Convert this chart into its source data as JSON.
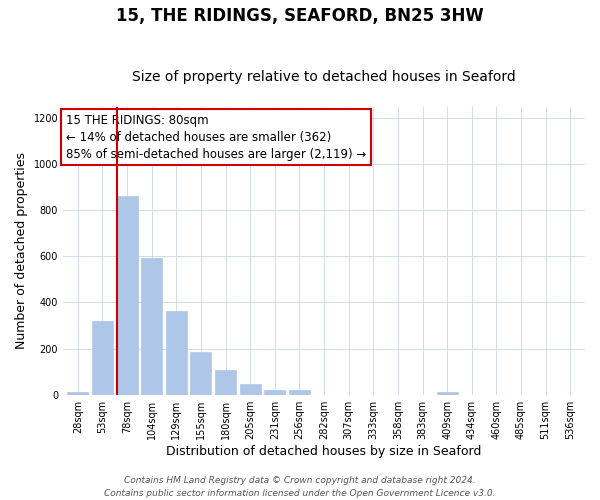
{
  "title": "15, THE RIDINGS, SEAFORD, BN25 3HW",
  "subtitle": "Size of property relative to detached houses in Seaford",
  "xlabel": "Distribution of detached houses by size in Seaford",
  "ylabel": "Number of detached properties",
  "bar_labels": [
    "28sqm",
    "53sqm",
    "78sqm",
    "104sqm",
    "129sqm",
    "155sqm",
    "180sqm",
    "205sqm",
    "231sqm",
    "256sqm",
    "282sqm",
    "307sqm",
    "333sqm",
    "358sqm",
    "383sqm",
    "409sqm",
    "434sqm",
    "460sqm",
    "485sqm",
    "511sqm",
    "536sqm"
  ],
  "bar_values": [
    10,
    320,
    860,
    595,
    365,
    185,
    105,
    45,
    20,
    20,
    0,
    0,
    0,
    0,
    0,
    10,
    0,
    0,
    0,
    0,
    0
  ],
  "bar_color": "#aec6e8",
  "bar_edge_color": "#aec6e8",
  "highlight_bar_index": 2,
  "highlight_color": "#cc0000",
  "annotation_line1": "15 THE RIDINGS: 80sqm",
  "annotation_line2": "← 14% of detached houses are smaller (362)",
  "annotation_line3": "85% of semi-detached houses are larger (2,119) →",
  "ylim": [
    0,
    1250
  ],
  "yticks": [
    0,
    200,
    400,
    600,
    800,
    1000,
    1200
  ],
  "background_color": "#ffffff",
  "grid_color": "#d0dce8",
  "title_fontsize": 12,
  "subtitle_fontsize": 10,
  "axis_label_fontsize": 9,
  "tick_fontsize": 7,
  "annotation_fontsize": 8.5,
  "footer_fontsize": 6.5,
  "footer_line1": "Contains HM Land Registry data © Crown copyright and database right 2024.",
  "footer_line2": "Contains public sector information licensed under the Open Government Licence v3.0."
}
